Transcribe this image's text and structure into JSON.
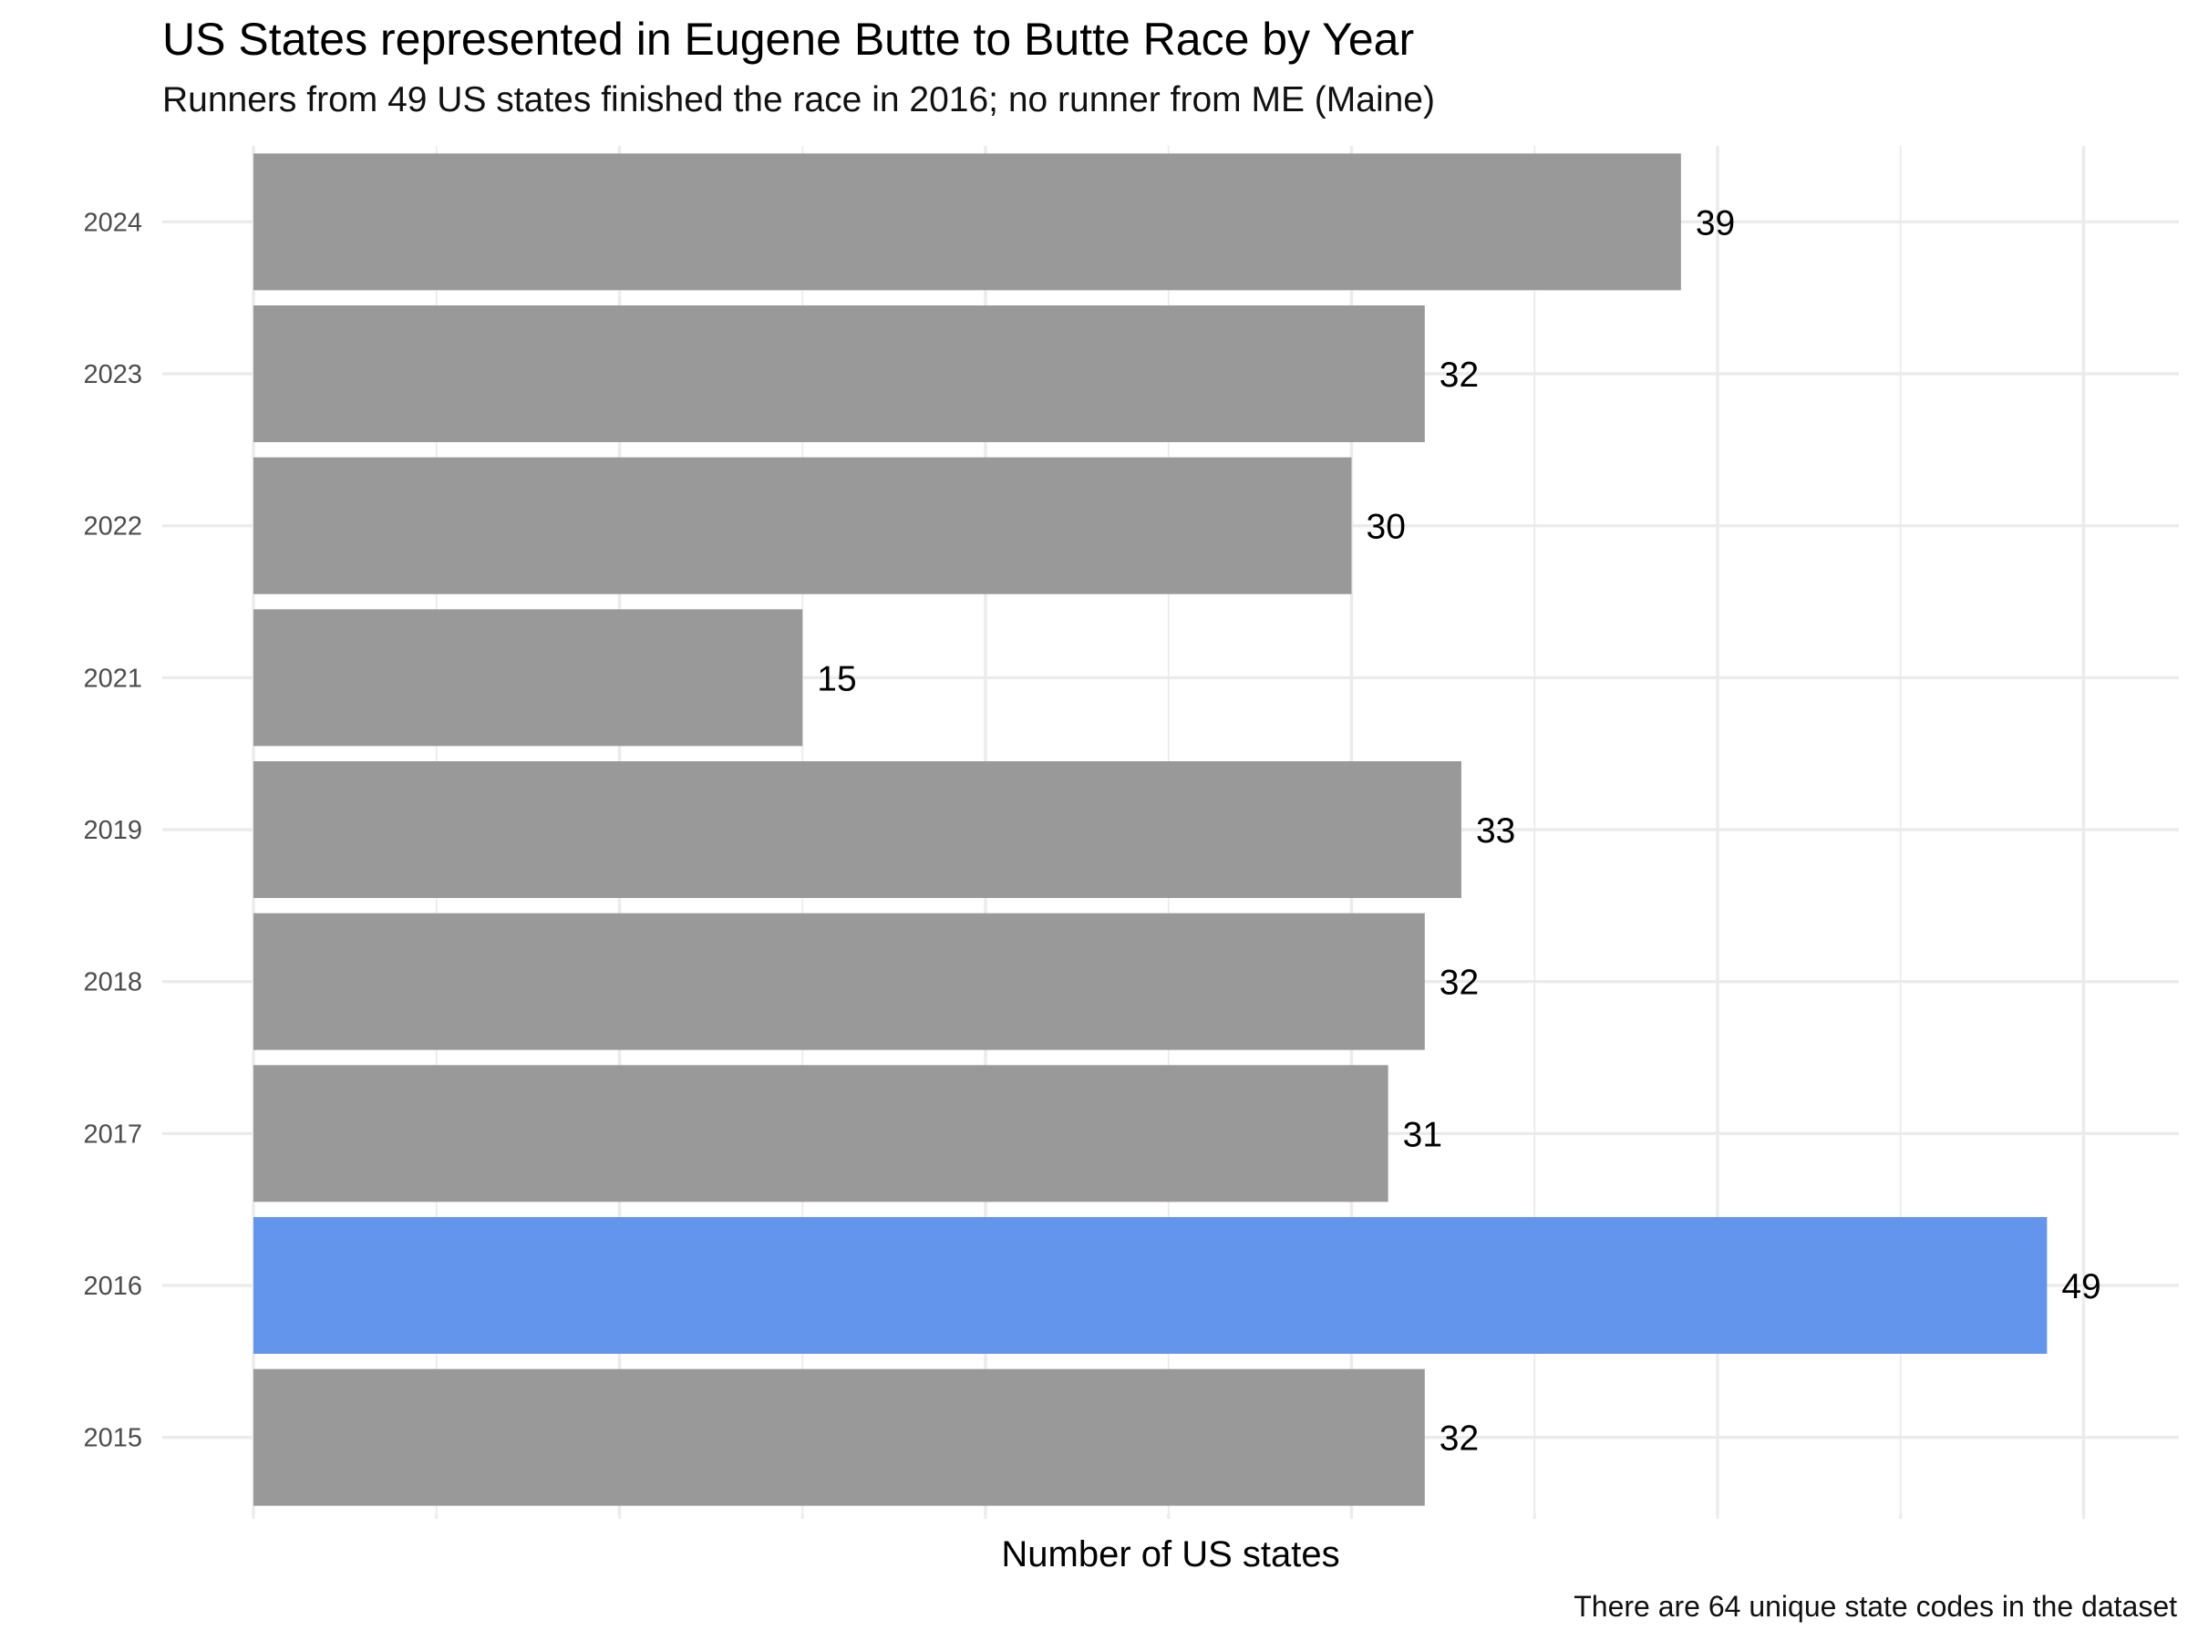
{
  "chart_data": {
    "type": "bar",
    "orientation": "horizontal",
    "title": "US States represented in Eugene Butte to Butte Race by Year",
    "subtitle": "Runners from 49 US states finished the race in 2016; no runner from ME (Maine)",
    "caption": "There are 64 unique state codes in the dataset",
    "xlabel": "Number of US states",
    "ylabel": "",
    "categories": [
      "2015",
      "2016",
      "2017",
      "2018",
      "2019",
      "2021",
      "2022",
      "2023",
      "2024"
    ],
    "values": [
      32,
      49,
      31,
      32,
      33,
      15,
      30,
      32,
      39
    ],
    "highlight_category": "2016",
    "colors": {
      "bar": "#999999",
      "highlight": "#6495ED",
      "grid": "#ebebeb"
    },
    "xlim": [
      0,
      50
    ],
    "x_tick_labels_shown": false,
    "grid": true
  }
}
